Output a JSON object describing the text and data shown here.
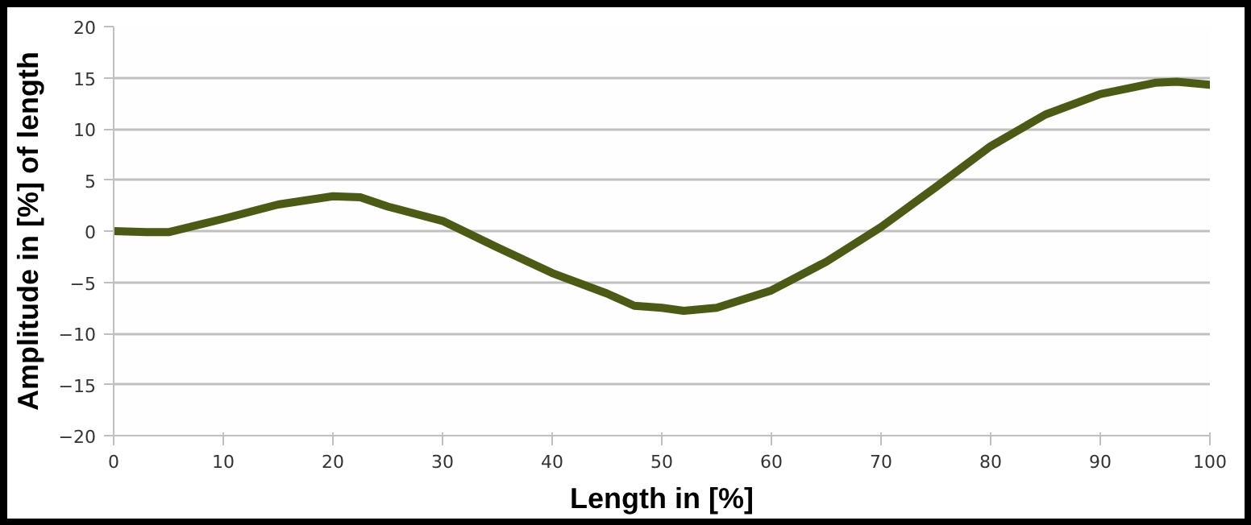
{
  "chart_data": {
    "type": "line",
    "xlabel": "Length in [%]",
    "ylabel": "Amplitude in [%] of length",
    "x": [
      0,
      3,
      5,
      10,
      15,
      20,
      22.5,
      25,
      30,
      35,
      40,
      45,
      47.5,
      50,
      52,
      55,
      60,
      65,
      70,
      75,
      80,
      85,
      90,
      95,
      97,
      100
    ],
    "series": [
      {
        "color": "#4b5a14",
        "values": [
          0,
          -0.1,
          -0.1,
          1.2,
          2.6,
          3.4,
          3.3,
          2.4,
          1.0,
          -1.6,
          -4.1,
          -6.1,
          -7.3,
          -7.5,
          -7.8,
          -7.5,
          -5.8,
          -3.0,
          0.4,
          4.3,
          8.3,
          11.4,
          13.4,
          14.5,
          14.6,
          14.3
        ]
      }
    ],
    "xlim": [
      0,
      100
    ],
    "xticks": [
      0,
      10,
      20,
      30,
      40,
      50,
      60,
      70,
      80,
      90,
      100
    ],
    "ylim": [
      -20,
      20
    ],
    "yticks": [
      -20,
      -15,
      -10,
      -5,
      0,
      5,
      10,
      15,
      20
    ],
    "grid": "y",
    "marker": "none",
    "line_style": "solid"
  }
}
